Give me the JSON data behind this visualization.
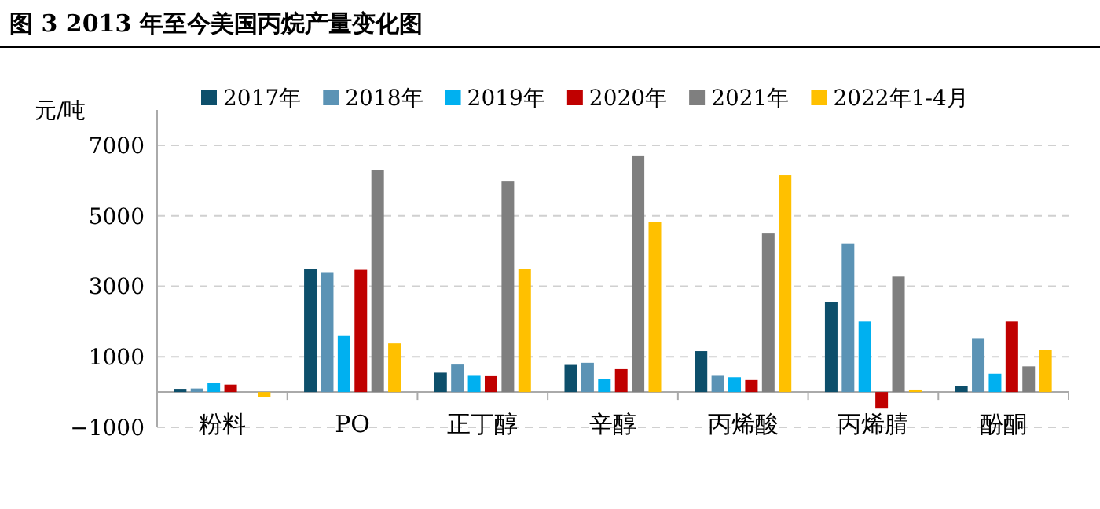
{
  "chart_data": {
    "type": "bar",
    "title": "图 3  2013 年至今美国丙烷产量变化图",
    "ylabel": "元/吨",
    "categories": [
      "粉料",
      "PO",
      "正丁醇",
      "辛醇",
      "丙烯酸",
      "丙烯腈",
      "酚酮"
    ],
    "series": [
      {
        "name": "2017年",
        "color": "#0d4f6b",
        "values": [
          90,
          3480,
          550,
          770,
          1160,
          2560,
          160
        ]
      },
      {
        "name": "2018年",
        "color": "#5b93b5",
        "values": [
          100,
          3400,
          780,
          830,
          460,
          4220,
          1530
        ]
      },
      {
        "name": "2019年",
        "color": "#00b0f0",
        "values": [
          270,
          1590,
          460,
          380,
          420,
          2000,
          520
        ]
      },
      {
        "name": "2020年",
        "color": "#c00000",
        "values": [
          210,
          3465,
          450,
          650,
          340,
          -470,
          2000
        ]
      },
      {
        "name": "2021年",
        "color": "#7f7f7f",
        "values": [
          0,
          6300,
          5970,
          6710,
          4500,
          3270,
          730
        ]
      },
      {
        "name": "2022年1-4月",
        "color": "#ffc000",
        "values": [
          -150,
          1380,
          3480,
          4820,
          6150,
          70,
          1190
        ]
      }
    ],
    "ylim": [
      -1000,
      8000
    ],
    "yticks": [
      -1000,
      1000,
      3000,
      5000,
      7000
    ],
    "grid": "y",
    "legend": "top"
  }
}
